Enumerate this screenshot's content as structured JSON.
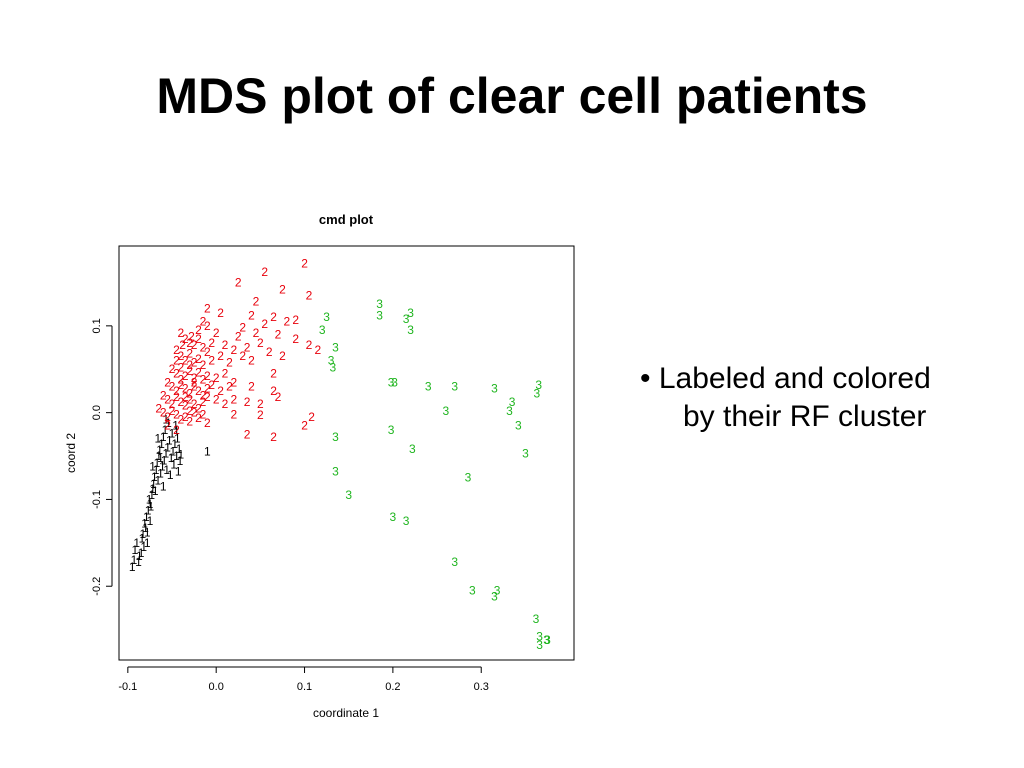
{
  "slide": {
    "title": "MDS plot of clear cell patients",
    "bullet": {
      "marker": "•",
      "line1": "Labeled and colored",
      "line2": "by their RF cluster"
    }
  },
  "colors": {
    "1": "#000000",
    "2": "#e8000b",
    "3": "#1fb51f"
  },
  "chart_data": {
    "type": "scatter",
    "title": "cmd plot",
    "xlabel": "coordinate 1",
    "ylabel": "coord 2",
    "xlim": [
      -0.11,
      0.405
    ],
    "ylim": [
      -0.285,
      0.192
    ],
    "xticks": [
      -0.1,
      0.0,
      0.1,
      0.2,
      0.3
    ],
    "xtick_labels": [
      "-0.1",
      "0.0",
      "0.1",
      "0.2",
      "0.3"
    ],
    "yticks": [
      -0.2,
      -0.1,
      0.0,
      0.1
    ],
    "ytick_labels": [
      "-0.2",
      "-0.1",
      "0.0",
      "0.1"
    ],
    "grid": false,
    "marker": "cluster label glyph",
    "series": [
      {
        "label": "1",
        "color": "#000000",
        "points": [
          [
            -0.095,
            -0.178
          ],
          [
            -0.093,
            -0.17
          ],
          [
            -0.092,
            -0.158
          ],
          [
            -0.09,
            -0.15
          ],
          [
            -0.087,
            -0.165
          ],
          [
            -0.085,
            -0.162
          ],
          [
            -0.084,
            -0.145
          ],
          [
            -0.083,
            -0.14
          ],
          [
            -0.082,
            -0.155
          ],
          [
            -0.081,
            -0.128
          ],
          [
            -0.08,
            -0.133
          ],
          [
            -0.079,
            -0.12
          ],
          [
            -0.078,
            -0.138
          ],
          [
            -0.077,
            -0.113
          ],
          [
            -0.076,
            -0.1
          ],
          [
            -0.075,
            -0.125
          ],
          [
            -0.074,
            -0.108
          ],
          [
            -0.073,
            -0.095
          ],
          [
            -0.072,
            -0.088
          ],
          [
            -0.071,
            -0.082
          ],
          [
            -0.07,
            -0.074
          ],
          [
            -0.069,
            -0.09
          ],
          [
            -0.068,
            -0.066
          ],
          [
            -0.067,
            -0.058
          ],
          [
            -0.066,
            -0.078
          ],
          [
            -0.065,
            -0.05
          ],
          [
            -0.064,
            -0.043
          ],
          [
            -0.063,
            -0.07
          ],
          [
            -0.062,
            -0.036
          ],
          [
            -0.061,
            -0.062
          ],
          [
            -0.06,
            -0.028
          ],
          [
            -0.059,
            -0.055
          ],
          [
            -0.058,
            -0.02
          ],
          [
            -0.057,
            -0.047
          ],
          [
            -0.056,
            -0.066
          ],
          [
            -0.055,
            -0.04
          ],
          [
            -0.054,
            -0.012
          ],
          [
            -0.053,
            -0.032
          ],
          [
            -0.052,
            -0.072
          ],
          [
            -0.051,
            -0.052
          ],
          [
            -0.05,
            -0.024
          ],
          [
            -0.049,
            -0.045
          ],
          [
            -0.048,
            -0.06
          ],
          [
            -0.047,
            -0.036
          ],
          [
            -0.046,
            -0.015
          ],
          [
            -0.045,
            -0.05
          ],
          [
            -0.044,
            -0.03
          ],
          [
            -0.043,
            -0.068
          ],
          [
            -0.042,
            -0.042
          ],
          [
            -0.041,
            -0.056
          ],
          [
            -0.04,
            -0.048
          ],
          [
            -0.045,
            -0.02
          ],
          [
            -0.06,
            -0.085
          ],
          [
            -0.075,
            -0.105
          ],
          [
            -0.078,
            -0.15
          ],
          [
            -0.072,
            -0.062
          ],
          [
            -0.066,
            -0.03
          ],
          [
            -0.057,
            -0.008
          ],
          [
            -0.088,
            -0.172
          ],
          [
            -0.063,
            -0.052
          ],
          [
            -0.01,
            -0.045
          ]
        ]
      },
      {
        "label": "2",
        "color": "#e8000b",
        "points": [
          [
            0.1,
            0.172
          ],
          [
            0.055,
            0.162
          ],
          [
            0.025,
            0.15
          ],
          [
            0.075,
            0.142
          ],
          [
            0.105,
            0.135
          ],
          [
            0.045,
            0.128
          ],
          [
            -0.01,
            0.12
          ],
          [
            0.005,
            0.115
          ],
          [
            0.04,
            0.112
          ],
          [
            0.065,
            0.11
          ],
          [
            0.09,
            0.107
          ],
          [
            -0.015,
            0.105
          ],
          [
            -0.01,
            0.1
          ],
          [
            0.03,
            0.098
          ],
          [
            0.055,
            0.102
          ],
          [
            0.08,
            0.105
          ],
          [
            -0.02,
            0.095
          ],
          [
            0.0,
            0.092
          ],
          [
            0.025,
            0.088
          ],
          [
            0.045,
            0.092
          ],
          [
            0.07,
            0.09
          ],
          [
            0.09,
            0.085
          ],
          [
            -0.04,
            0.092
          ],
          [
            -0.035,
            0.085
          ],
          [
            -0.03,
            0.08
          ],
          [
            -0.025,
            0.078
          ],
          [
            -0.02,
            0.085
          ],
          [
            -0.015,
            0.075
          ],
          [
            -0.01,
            0.07
          ],
          [
            -0.005,
            0.08
          ],
          [
            0.01,
            0.078
          ],
          [
            0.02,
            0.072
          ],
          [
            0.035,
            0.075
          ],
          [
            0.05,
            0.08
          ],
          [
            0.06,
            0.07
          ],
          [
            0.075,
            0.065
          ],
          [
            0.105,
            0.078
          ],
          [
            0.115,
            0.072
          ],
          [
            -0.045,
            0.072
          ],
          [
            -0.04,
            0.065
          ],
          [
            -0.035,
            0.06
          ],
          [
            -0.03,
            0.068
          ],
          [
            -0.025,
            0.058
          ],
          [
            -0.02,
            0.062
          ],
          [
            -0.015,
            0.055
          ],
          [
            -0.005,
            0.06
          ],
          [
            0.005,
            0.065
          ],
          [
            0.015,
            0.058
          ],
          [
            0.03,
            0.065
          ],
          [
            0.04,
            0.06
          ],
          [
            -0.05,
            0.05
          ],
          [
            -0.045,
            0.045
          ],
          [
            -0.04,
            0.052
          ],
          [
            -0.035,
            0.042
          ],
          [
            -0.03,
            0.048
          ],
          [
            -0.025,
            0.04
          ],
          [
            -0.02,
            0.046
          ],
          [
            -0.015,
            0.038
          ],
          [
            -0.01,
            0.042
          ],
          [
            0.0,
            0.04
          ],
          [
            0.01,
            0.045
          ],
          [
            0.02,
            0.035
          ],
          [
            0.065,
            0.045
          ],
          [
            -0.055,
            0.035
          ],
          [
            -0.05,
            0.03
          ],
          [
            -0.045,
            0.025
          ],
          [
            -0.04,
            0.032
          ],
          [
            -0.035,
            0.028
          ],
          [
            -0.03,
            0.022
          ],
          [
            -0.025,
            0.03
          ],
          [
            -0.02,
            0.025
          ],
          [
            -0.015,
            0.02
          ],
          [
            -0.01,
            0.028
          ],
          [
            -0.005,
            0.032
          ],
          [
            0.005,
            0.025
          ],
          [
            0.015,
            0.03
          ],
          [
            0.04,
            0.03
          ],
          [
            0.065,
            0.025
          ],
          [
            -0.06,
            0.02
          ],
          [
            -0.055,
            0.015
          ],
          [
            -0.05,
            0.01
          ],
          [
            -0.045,
            0.018
          ],
          [
            -0.04,
            0.012
          ],
          [
            -0.035,
            0.008
          ],
          [
            -0.03,
            0.015
          ],
          [
            -0.025,
            0.01
          ],
          [
            -0.02,
            0.005
          ],
          [
            -0.015,
            0.012
          ],
          [
            -0.01,
            0.018
          ],
          [
            0.0,
            0.015
          ],
          [
            0.01,
            0.01
          ],
          [
            0.02,
            0.015
          ],
          [
            0.035,
            0.012
          ],
          [
            0.05,
            0.01
          ],
          [
            -0.065,
            0.005
          ],
          [
            -0.06,
            0.0
          ],
          [
            -0.055,
            -0.005
          ],
          [
            -0.05,
            0.002
          ],
          [
            -0.045,
            -0.002
          ],
          [
            -0.04,
            -0.008
          ],
          [
            -0.035,
            -0.005
          ],
          [
            -0.03,
            -0.01
          ],
          [
            -0.025,
            0.0
          ],
          [
            -0.02,
            -0.006
          ],
          [
            -0.015,
            -0.002
          ],
          [
            -0.01,
            -0.012
          ],
          [
            0.02,
            -0.002
          ],
          [
            0.05,
            -0.003
          ],
          [
            0.07,
            0.018
          ],
          [
            -0.055,
            -0.015
          ],
          [
            -0.045,
            -0.02
          ],
          [
            0.035,
            -0.025
          ],
          [
            0.065,
            -0.028
          ],
          [
            0.1,
            -0.015
          ],
          [
            0.108,
            -0.005
          ],
          [
            -0.04,
            0.038
          ],
          [
            -0.03,
            0.055
          ],
          [
            -0.025,
            0.035
          ],
          [
            -0.035,
            0.018
          ],
          [
            -0.03,
            0.002
          ],
          [
            -0.045,
            0.06
          ],
          [
            -0.038,
            0.078
          ],
          [
            -0.028,
            0.088
          ]
        ]
      },
      {
        "label": "3",
        "color": "#1fb51f",
        "points": [
          [
            0.185,
            0.125
          ],
          [
            0.22,
            0.115
          ],
          [
            0.125,
            0.11
          ],
          [
            0.185,
            0.112
          ],
          [
            0.215,
            0.108
          ],
          [
            0.12,
            0.095
          ],
          [
            0.22,
            0.095
          ],
          [
            0.135,
            0.075
          ],
          [
            0.13,
            0.06
          ],
          [
            0.132,
            0.052
          ],
          [
            0.198,
            0.035
          ],
          [
            0.202,
            0.035
          ],
          [
            0.24,
            0.03
          ],
          [
            0.27,
            0.03
          ],
          [
            0.315,
            0.028
          ],
          [
            0.365,
            0.032
          ],
          [
            0.363,
            0.022
          ],
          [
            0.335,
            0.012
          ],
          [
            0.26,
            0.002
          ],
          [
            0.332,
            0.002
          ],
          [
            0.342,
            -0.015
          ],
          [
            0.198,
            -0.02
          ],
          [
            0.135,
            -0.028
          ],
          [
            0.222,
            -0.042
          ],
          [
            0.35,
            -0.047
          ],
          [
            0.285,
            -0.075
          ],
          [
            0.135,
            -0.068
          ],
          [
            0.15,
            -0.095
          ],
          [
            0.2,
            -0.12
          ],
          [
            0.215,
            -0.125
          ],
          [
            0.27,
            -0.172
          ],
          [
            0.29,
            -0.205
          ],
          [
            0.318,
            -0.205
          ],
          [
            0.315,
            -0.212
          ],
          [
            0.362,
            -0.238
          ],
          [
            0.366,
            -0.258
          ],
          [
            0.374,
            -0.262
          ],
          [
            0.366,
            -0.268
          ],
          [
            0.375,
            -0.262
          ]
        ]
      }
    ]
  }
}
